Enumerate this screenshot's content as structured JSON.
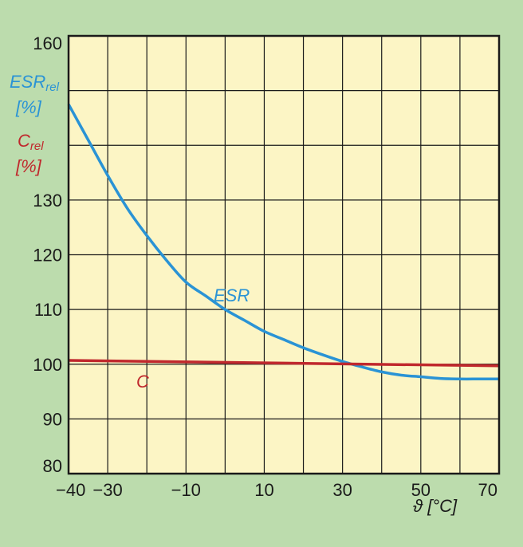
{
  "chart_data": {
    "type": "line",
    "xlim": [
      -40,
      70
    ],
    "ylim": [
      80,
      160
    ],
    "x_ticks": [
      "−40",
      "−30",
      "−10",
      "10",
      "30",
      "50",
      "70"
    ],
    "x_tick_values": [
      -40,
      -30,
      -10,
      10,
      30,
      50,
      70
    ],
    "y_ticks": [
      "160",
      "130",
      "120",
      "110",
      "100",
      "90",
      "80"
    ],
    "y_tick_values": [
      160,
      130,
      120,
      110,
      100,
      90,
      80
    ],
    "x_unit_label": "ϑ [°C]",
    "y_labels": [
      {
        "main": "ESR",
        "sub": "rel",
        "unit": "[%]",
        "color": "#2a93d5"
      },
      {
        "main": "C",
        "sub": "rel",
        "unit": "[%]",
        "color": "#c0282d"
      }
    ],
    "grid": true,
    "series": [
      {
        "name": "ESR",
        "color": "#2a93d5",
        "x": [
          -40,
          -35,
          -30,
          -25,
          -20,
          -15,
          -10,
          -5,
          0,
          5,
          10,
          15,
          20,
          25,
          30,
          35,
          40,
          45,
          50,
          55,
          60,
          65,
          70
        ],
        "y": [
          147.5,
          141.0,
          134.5,
          128.5,
          123.5,
          119.0,
          115.0,
          112.5,
          110.0,
          108.0,
          106.0,
          104.5,
          103.0,
          101.7,
          100.5,
          99.5,
          98.6,
          98.0,
          97.7,
          97.4,
          97.3,
          97.3,
          97.3
        ]
      },
      {
        "name": "C",
        "color": "#c0282d",
        "x": [
          -40,
          70
        ],
        "y": [
          100.7,
          99.7
        ]
      }
    ]
  },
  "colors": {
    "frame_background": "#bcdcad",
    "plot_background": "#fcf5c5",
    "grid": "#1a1a1a"
  }
}
